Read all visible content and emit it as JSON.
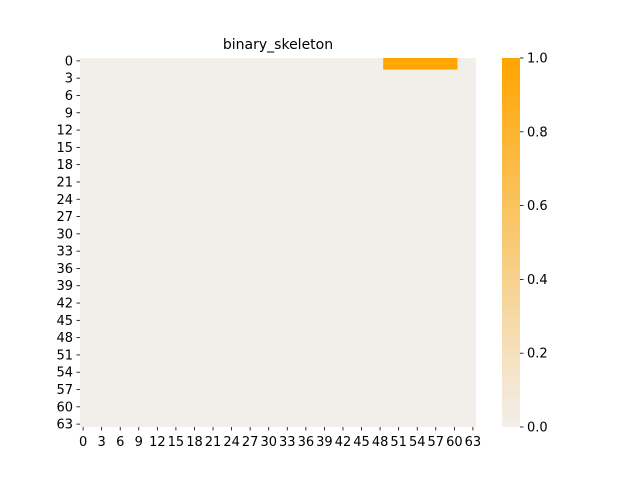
{
  "chart_data": {
    "type": "heatmap",
    "title": "binary_skeleton",
    "xlabel": "",
    "ylabel": "",
    "n_rows": 64,
    "n_cols": 64,
    "x_tick_labels": [
      "0",
      "3",
      "6",
      "9",
      "12",
      "15",
      "18",
      "21",
      "24",
      "27",
      "30",
      "33",
      "36",
      "39",
      "42",
      "45",
      "48",
      "51",
      "54",
      "57",
      "60",
      "63"
    ],
    "y_tick_labels": [
      "0",
      "3",
      "6",
      "9",
      "12",
      "15",
      "18",
      "21",
      "24",
      "27",
      "30",
      "33",
      "36",
      "39",
      "42",
      "45",
      "48",
      "51",
      "54",
      "57",
      "60",
      "63"
    ],
    "value_range": [
      0,
      1
    ],
    "background_value": 0,
    "active_cells": [
      {
        "row": 0,
        "cols": [
          49,
          60
        ],
        "value": 1
      },
      {
        "row": 1,
        "cols": [
          49,
          60
        ],
        "value": 1
      }
    ],
    "colorbar": {
      "ticks": [
        "0.0",
        "0.2",
        "0.4",
        "0.6",
        "0.8",
        "1.0"
      ],
      "tick_values": [
        0,
        0.2,
        0.4,
        0.6,
        0.8,
        1.0
      ],
      "color_low": "#f2efeb",
      "color_high": "#ffa500"
    },
    "grid": false,
    "legend": "colorbar-right"
  }
}
